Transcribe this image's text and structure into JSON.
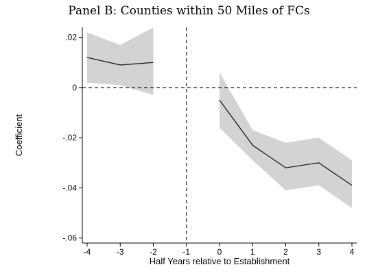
{
  "chart_data": {
    "type": "line",
    "title": "Panel B: Counties within 50 Miles of FCs",
    "xlabel": "Half Years relative to Establishment",
    "ylabel": "Coefficient",
    "xlim": [
      -4,
      4
    ],
    "ylim": [
      -0.062,
      0.024
    ],
    "x_ticks": [
      -4,
      -3,
      -2,
      -1,
      0,
      1,
      2,
      3,
      4
    ],
    "x_tick_labels": [
      "-4",
      "-3",
      "-2",
      "-1",
      "0",
      "1",
      "2",
      "3",
      "4"
    ],
    "y_ticks": [
      0.02,
      0,
      -0.02,
      -0.04,
      -0.06
    ],
    "y_tick_labels": [
      ".02",
      "0",
      "-.02",
      "-.04",
      "-.06"
    ],
    "reference_lines": {
      "horizontal_y": 0,
      "vertical_x": -1,
      "style": "dashed"
    },
    "band_color": "#d3d3d3",
    "line_color": "#1a1a1a",
    "series": [
      {
        "x": [
          -4,
          -3,
          -2
        ],
        "y": [
          0.012,
          0.009,
          0.01
        ],
        "ci_lower": [
          0.002,
          0.001,
          -0.003
        ],
        "ci_upper": [
          0.022,
          0.017,
          0.024
        ]
      },
      {
        "x": [
          0,
          1,
          2,
          3,
          4
        ],
        "y": [
          -0.005,
          -0.023,
          -0.032,
          -0.03,
          -0.039
        ],
        "ci_lower": [
          -0.016,
          -0.029,
          -0.041,
          -0.039,
          -0.048
        ],
        "ci_upper": [
          0.006,
          -0.017,
          -0.022,
          -0.02,
          -0.029
        ]
      }
    ]
  }
}
